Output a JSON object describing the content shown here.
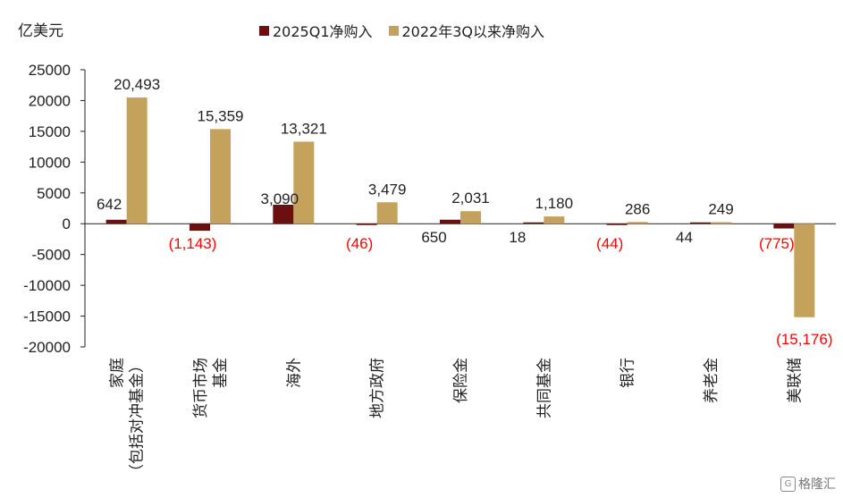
{
  "chart_data": {
    "type": "bar",
    "unit_label": "亿美元",
    "categories": [
      [
        "家庭",
        "（包括对冲基金）"
      ],
      [
        "货币市场",
        "基金"
      ],
      [
        "海外"
      ],
      [
        "地方政府"
      ],
      [
        "保险金"
      ],
      [
        "共同基金"
      ],
      [
        "银行"
      ],
      [
        "养老金"
      ],
      [
        "美联储"
      ]
    ],
    "series": [
      {
        "name": "2025Q1净购入",
        "color": "#6b0f0f",
        "values": [
          642,
          -1143,
          3090,
          -46,
          650,
          18,
          -44,
          44,
          -775
        ],
        "labels": [
          "642",
          "(1,143)",
          "3,090",
          "(46)",
          "650",
          "18",
          "(44)",
          "44",
          "(775)"
        ]
      },
      {
        "name": "2022年3Q以来净购入",
        "color": "#c4a25c",
        "values": [
          20493,
          15359,
          13321,
          3479,
          2031,
          1180,
          286,
          249,
          -15176
        ],
        "labels": [
          "20,493",
          "15,359",
          "13,321",
          "3,479",
          "2,031",
          "1,180",
          "286",
          "249",
          "(15,176)"
        ]
      }
    ],
    "negative_label_color": "#ff0000",
    "ylim": [
      -20000,
      25000
    ],
    "yticks": [
      25000,
      20000,
      15000,
      10000,
      5000,
      0,
      -5000,
      -10000,
      -15000,
      -20000
    ],
    "legend_position": "top"
  },
  "watermark": {
    "icon": "G",
    "text": "格隆汇"
  }
}
